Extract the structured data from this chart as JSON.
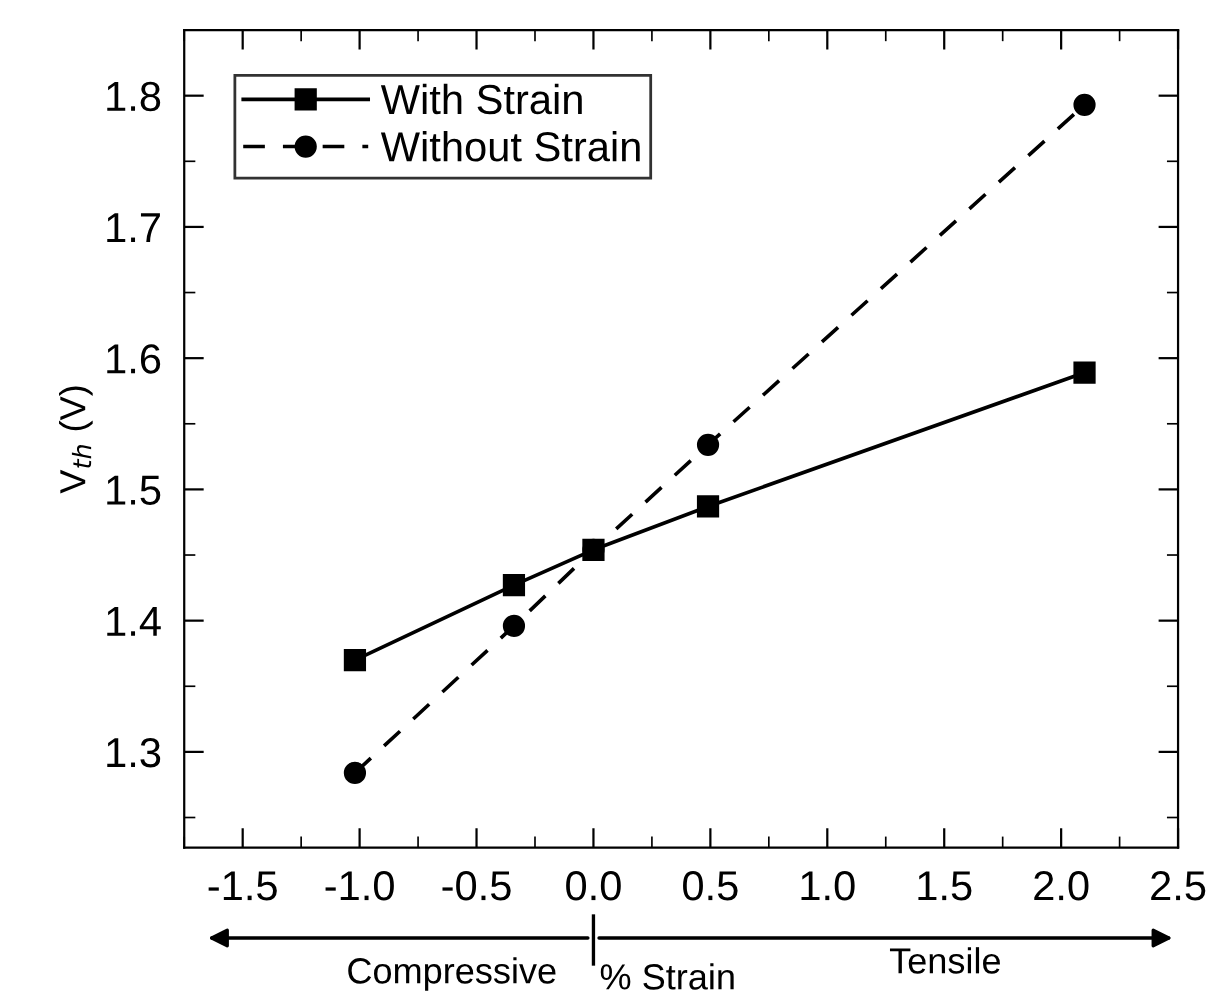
{
  "chart_data": {
    "type": "line",
    "xlabel": "% Strain",
    "ylabel": "V$_{th}$ (V)",
    "annotations": [
      "Compressive",
      "Tensile"
    ],
    "x": [
      -1.02,
      -0.34,
      0,
      0.49,
      2.1
    ],
    "series": [
      {
        "name": "With Strain",
        "color": "#000000",
        "values": [
          1.37,
          1.427,
          1.454,
          1.487,
          1.589
        ],
        "marker": "square",
        "line_style": "solid"
      },
      {
        "name": "Without Strain",
        "color": "#000000",
        "values": [
          1.284,
          1.396,
          1.454,
          1.534,
          1.793
        ],
        "marker": "circle",
        "line_style": "dashed"
      }
    ],
    "xlim": [
      -1.75,
      2.5
    ],
    "xticks": [
      {
        "value": -1.5,
        "label": "-1.5"
      },
      {
        "value": -1.0,
        "label": "-1.0"
      },
      {
        "value": -0.5,
        "label": "-0.5"
      },
      {
        "value": 0,
        "label": "0.0"
      },
      {
        "value": 0.5,
        "label": "0.5"
      },
      {
        "value": 1.0,
        "label": "1.0"
      },
      {
        "value": 1.5,
        "label": "1.5"
      },
      {
        "value": 2.0,
        "label": "2.0"
      },
      {
        "value": 2.5,
        "label": "2.5"
      }
    ],
    "ylim": [
      1.227,
      1.85
    ],
    "yticks": [
      {
        "value": 1.3,
        "label": "1.3"
      },
      {
        "value": 1.4,
        "label": "1.4"
      },
      {
        "value": 1.5,
        "label": "1.5"
      },
      {
        "value": 1.6,
        "label": "1.6"
      },
      {
        "value": 1.7,
        "label": "1.7"
      },
      {
        "value": 1.8,
        "label": "1.8"
      }
    ],
    "grid": false,
    "legend": "top left"
  }
}
